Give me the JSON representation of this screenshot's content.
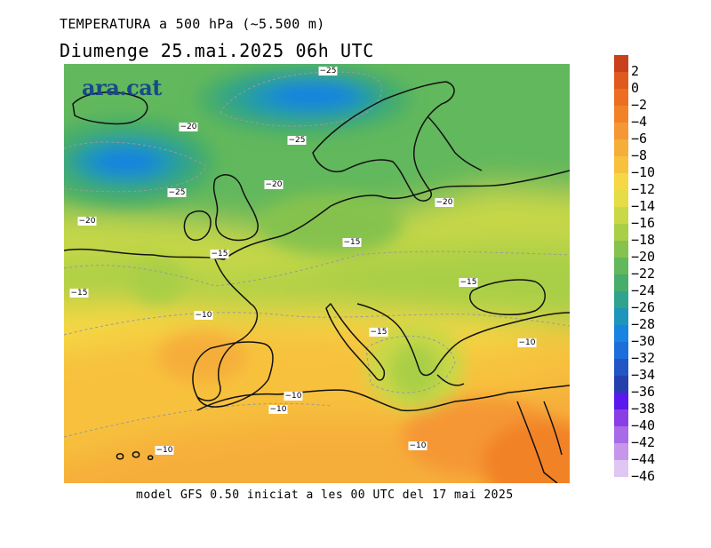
{
  "header": {
    "line1": "TEMPERATURA a 500 hPa (~5.500 m)",
    "line2": "Diumenge  25.mai.2025 06h UTC"
  },
  "footer": "model GFS 0.50 iniciat a les 00 UTC del 17 mai 2025",
  "logo": "ara.cat",
  "legend": {
    "levels": [
      "2",
      "0",
      "−2",
      "−4",
      "−6",
      "−8",
      "−10",
      "−12",
      "−14",
      "−16",
      "−18",
      "−20",
      "−22",
      "−24",
      "−26",
      "−28",
      "−30",
      "−32",
      "−34",
      "−36",
      "−38",
      "−40",
      "−42",
      "−44",
      "−46"
    ],
    "colors": [
      "#c8401c",
      "#de5a1d",
      "#ec6e22",
      "#f28228",
      "#f59734",
      "#f6ae3b",
      "#f7c13e",
      "#f5d844",
      "#e6dc45",
      "#c9d846",
      "#a8cf46",
      "#85c24e",
      "#62b85b",
      "#47ad6a",
      "#2fa38d",
      "#1e96bc",
      "#1883e0",
      "#1c6fdb",
      "#2156c4",
      "#2440ad",
      "#5a18ee",
      "#8a3fe6",
      "#a86ae6",
      "#c596ea",
      "#e0c6f2"
    ]
  },
  "contour_labels": [
    "−25",
    "−20",
    "−25",
    "−20",
    "−25",
    "−20",
    "−20",
    "−15",
    "−15",
    "−15",
    "−15",
    "−10",
    "−15",
    "−10",
    "−10",
    "−10",
    "−10",
    "−10"
  ]
}
